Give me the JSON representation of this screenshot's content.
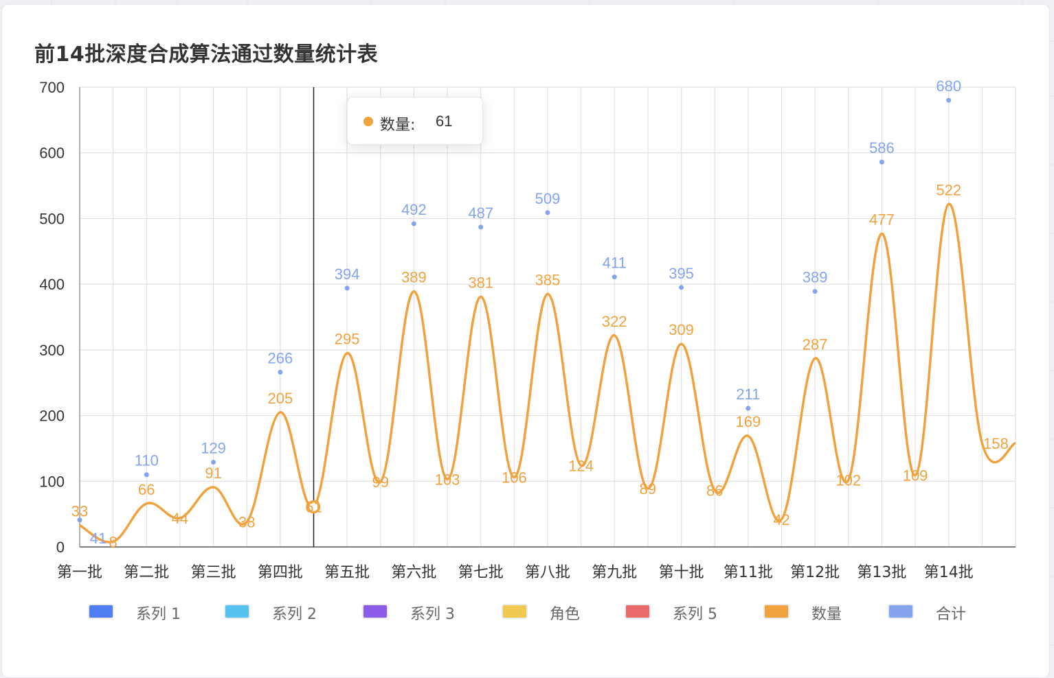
{
  "title": "前14批深度合成算法通过数量统计表",
  "tooltip": {
    "name": "数量:",
    "value": "61",
    "color": "#f0a23e"
  },
  "legend": [
    {
      "label": "系列 1",
      "color": "#4e7ef2"
    },
    {
      "label": "系列 2",
      "color": "#56c2ee"
    },
    {
      "label": "系列 3",
      "color": "#8c5be8"
    },
    {
      "label": "角色",
      "color": "#f0c94f"
    },
    {
      "label": "系列 5",
      "color": "#e96a66"
    },
    {
      "label": "数量",
      "color": "#f0a23e"
    },
    {
      "label": "合计",
      "color": "#85a4ee"
    }
  ],
  "chart_data": {
    "type": "line",
    "title": "前14批深度合成算法通过数量统计表",
    "categories": [
      "第一批",
      "第二批",
      "第三批",
      "第四批",
      "第五批",
      "第六批",
      "第七批",
      "第八批",
      "第九批",
      "第十批",
      "第11批",
      "第12批",
      "第13批",
      "第14批"
    ],
    "ylim": [
      0,
      700
    ],
    "yticks": [
      0,
      100,
      200,
      300,
      400,
      500,
      600,
      700
    ],
    "grid": true,
    "legend_position": "bottom",
    "series": [
      {
        "name": "数量",
        "type": "line",
        "smooth": true,
        "color": "#f0a23e",
        "x": [
          0,
          0.5,
          1,
          1.5,
          2,
          2.5,
          3,
          3.5,
          4,
          4.5,
          5,
          5.5,
          6,
          6.5,
          7,
          7.5,
          8,
          8.5,
          9,
          9.5,
          10,
          10.5,
          11,
          11.5,
          12,
          12.5,
          13,
          13.5
        ],
        "values": [
          33,
          8,
          66,
          44,
          91,
          38,
          205,
          61,
          295,
          99,
          389,
          103,
          381,
          106,
          385,
          124,
          322,
          89,
          309,
          86,
          169,
          42,
          287,
          102,
          477,
          109,
          522,
          158
        ],
        "labels": [
          "33",
          "8",
          "66",
          "44",
          "91",
          "38",
          "205",
          "61",
          "295",
          "99",
          "389",
          "103",
          "381",
          "106",
          "385",
          "124",
          "322",
          "89",
          "309",
          "86",
          "169",
          "42",
          "287",
          "102",
          "477",
          "109",
          "522",
          "158"
        ],
        "highlighted_index": 7
      },
      {
        "name": "合计",
        "type": "scatter",
        "color": "#85a4ee",
        "x": [
          0,
          1,
          2,
          3,
          4,
          5,
          6,
          7,
          8,
          9,
          10,
          11,
          12,
          13
        ],
        "values": [
          41,
          110,
          129,
          266,
          394,
          492,
          487,
          509,
          411,
          395,
          211,
          389,
          586,
          680
        ],
        "labels": [
          "41",
          "110",
          "129",
          "266",
          "394",
          "492",
          "487",
          "509",
          "411",
          "395",
          "211",
          "389",
          "586",
          "680"
        ]
      }
    ]
  }
}
